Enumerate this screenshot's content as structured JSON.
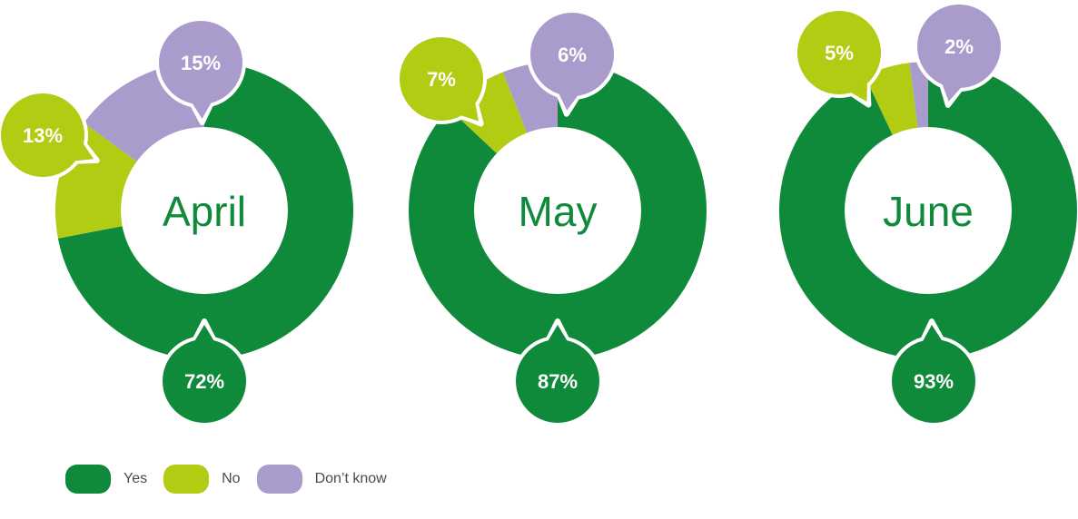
{
  "colors": {
    "yes": "#0f8a3a",
    "no": "#b1cc12",
    "dont_know": "#a99ccc"
  },
  "chart_data": {
    "type": "pie",
    "series_order": [
      "Yes",
      "No",
      "Don’t know"
    ],
    "charts": [
      {
        "center_label": "April",
        "values": {
          "Yes": 72,
          "No": 13,
          "Don’t know": 15
        },
        "labels": {
          "Yes": "72%",
          "No": "13%",
          "Don’t know": "15%"
        }
      },
      {
        "center_label": "May",
        "values": {
          "Yes": 87,
          "No": 7,
          "Don’t know": 6
        },
        "labels": {
          "Yes": "87%",
          "No": "7%",
          "Don’t know": "6%"
        }
      },
      {
        "center_label": "June",
        "values": {
          "Yes": 93,
          "No": 5,
          "Don’t know": 2
        },
        "labels": {
          "Yes": "93%",
          "No": "5%",
          "Don’t know": "2%"
        }
      }
    ],
    "legend": {
      "position": "bottom-left",
      "items": [
        {
          "label": "Yes",
          "color_key": "yes"
        },
        {
          "label": "No",
          "color_key": "no"
        },
        {
          "label": "Don’t know",
          "color_key": "dont_know"
        }
      ]
    }
  }
}
